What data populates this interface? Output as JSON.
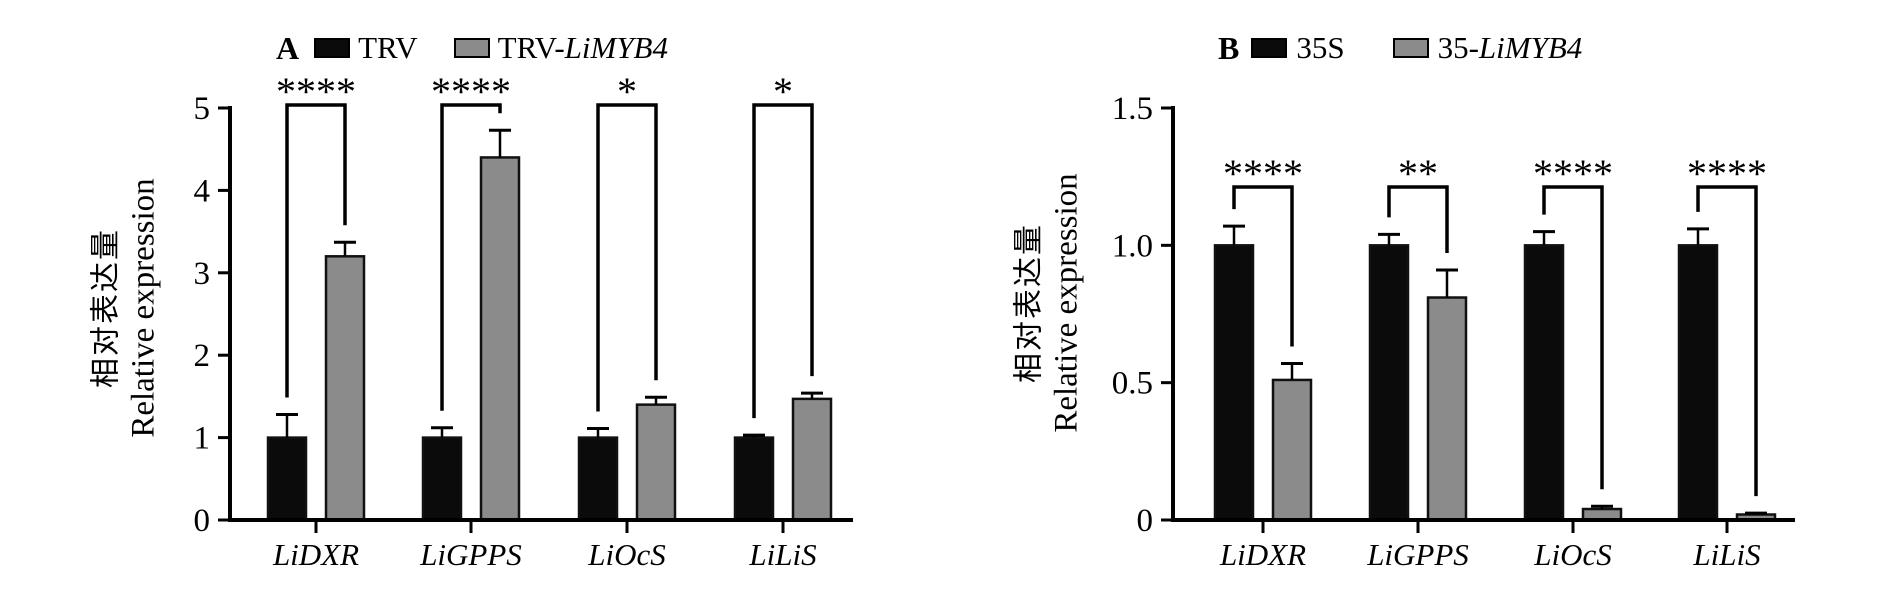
{
  "figure": {
    "background": "#ffffff",
    "axis_color": "#000000",
    "series_colors": {
      "black": "#0b0b0b",
      "gray": "#8b8b8b"
    }
  },
  "chart_data": [
    {
      "panel_label": "A",
      "type": "bar",
      "title": "",
      "ylabel_cn": "相对表达量",
      "ylabel_en": "Relative expression",
      "xlabel": "",
      "categories": [
        "LiDXR",
        "LiGPPS",
        "LiOcS",
        "LiLiS"
      ],
      "series": [
        {
          "name": "TRV",
          "color": "#0b0b0b",
          "values": [
            1.0,
            1.0,
            1.0,
            1.0
          ],
          "errors": [
            0.28,
            0.12,
            0.11,
            0.03
          ]
        },
        {
          "name": "TRV-LiMYB4",
          "color": "#8b8b8b",
          "values": [
            3.2,
            4.4,
            1.4,
            1.47
          ],
          "errors": [
            0.17,
            0.33,
            0.09,
            0.07
          ]
        }
      ],
      "legend": [
        {
          "prefix": "TRV",
          "italic": "",
          "color": "#0b0b0b"
        },
        {
          "prefix": "TRV-",
          "italic": "LiMYB4",
          "color": "#8b8b8b"
        }
      ],
      "significance": [
        "****",
        "****",
        "*",
        "*"
      ],
      "ylim": [
        0,
        5
      ],
      "yticks": [
        0,
        1,
        2,
        3,
        4,
        5
      ],
      "ytick_labels": [
        "0",
        "1",
        "2",
        "3",
        "4",
        "5"
      ],
      "grid": "off",
      "legend_position": "top"
    },
    {
      "panel_label": "B",
      "type": "bar",
      "title": "",
      "ylabel_cn": "相对表达量",
      "ylabel_en": "Relative expression",
      "xlabel": "",
      "categories": [
        "LiDXR",
        "LiGPPS",
        "LiOcS",
        "LiLiS"
      ],
      "series": [
        {
          "name": "35S",
          "color": "#0b0b0b",
          "values": [
            1.0,
            1.0,
            1.0,
            1.0
          ],
          "errors": [
            0.07,
            0.04,
            0.05,
            0.06
          ]
        },
        {
          "name": "35-LiMYB4",
          "color": "#8b8b8b",
          "values": [
            0.51,
            0.81,
            0.04,
            0.02
          ],
          "errors": [
            0.06,
            0.1,
            0.01,
            0.005
          ]
        }
      ],
      "legend": [
        {
          "prefix": "35S",
          "italic": "",
          "color": "#0b0b0b"
        },
        {
          "prefix": "35-",
          "italic": "LiMYB4",
          "color": "#8b8b8b"
        }
      ],
      "significance": [
        "****",
        "**",
        "****",
        "****"
      ],
      "ylim": [
        0,
        1.5
      ],
      "yticks": [
        0,
        0.5,
        1.0,
        1.5
      ],
      "ytick_labels": [
        "0",
        "0.5",
        "1.0",
        "1.5"
      ],
      "grid": "off",
      "legend_position": "top"
    }
  ]
}
